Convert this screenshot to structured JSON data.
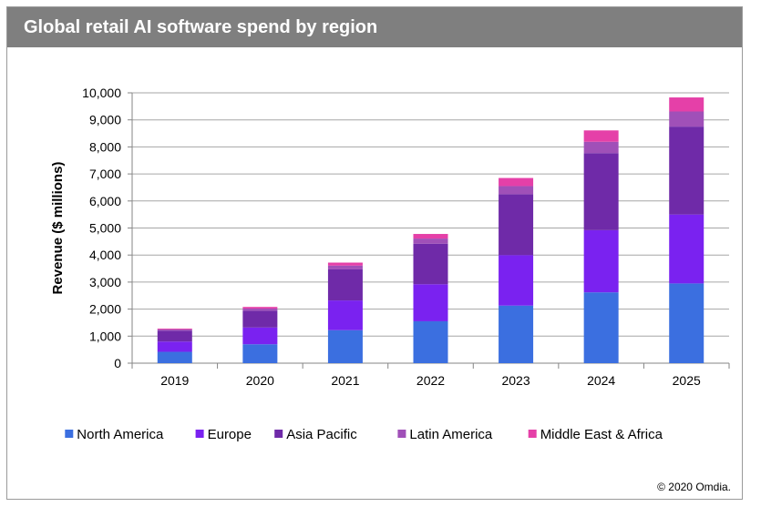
{
  "title": "Global retail AI software spend by region",
  "credit": "© 2020 Omdia.",
  "chart_data": {
    "type": "bar",
    "stacked": true,
    "categories": [
      "2019",
      "2020",
      "2021",
      "2022",
      "2023",
      "2024",
      "2025"
    ],
    "series": [
      {
        "name": "North America",
        "color": "#3b6fe0",
        "values": [
          420,
          700,
          1220,
          1550,
          2130,
          2620,
          2950
        ]
      },
      {
        "name": "Europe",
        "color": "#7a22f0",
        "values": [
          380,
          620,
          1100,
          1370,
          1870,
          2300,
          2550
        ]
      },
      {
        "name": "Asia Pacific",
        "color": "#6f2aa8",
        "values": [
          400,
          620,
          1150,
          1500,
          2250,
          2850,
          3250
        ]
      },
      {
        "name": "Latin America",
        "color": "#a050b8",
        "values": [
          50,
          80,
          140,
          190,
          300,
          420,
          560
        ]
      },
      {
        "name": "Middle East & Africa",
        "color": "#e540a8",
        "values": [
          30,
          60,
          110,
          170,
          300,
          420,
          520
        ]
      }
    ],
    "ylabel": "Revenue ($ millions)",
    "xlabel": "",
    "ylim": [
      0,
      10000
    ],
    "yticks": [
      "0",
      "1,000",
      "2,000",
      "3,000",
      "4,000",
      "5,000",
      "6,000",
      "7,000",
      "8,000",
      "9,000",
      "10,000"
    ],
    "grid": true,
    "legend": "bottom"
  }
}
